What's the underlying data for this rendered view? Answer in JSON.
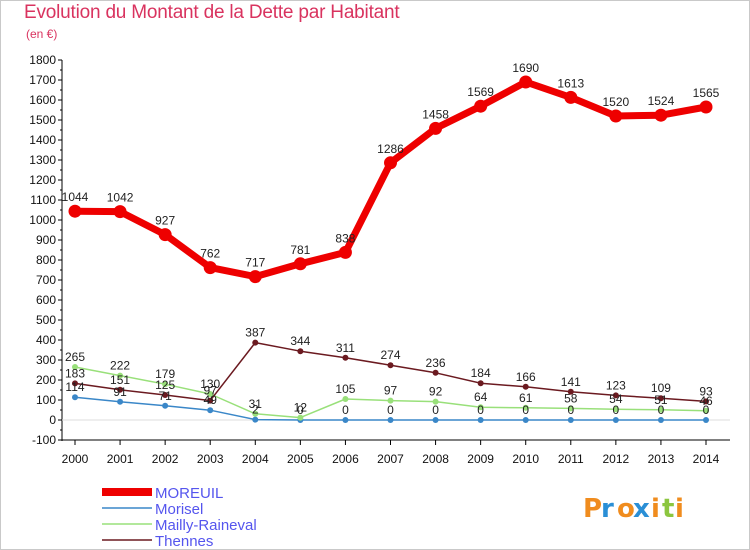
{
  "header": {
    "title": "Evolution du Montant de la Dette par Habitant",
    "subtitle": "(en €)"
  },
  "logo": {
    "text": "Proxiti",
    "letters": [
      "P",
      "r",
      "o",
      "x",
      "i",
      "t",
      "i"
    ],
    "colors": [
      "#f08c1e",
      "#2a8fd6",
      "#f08c1e",
      "#2a8fd6",
      "#f08c1e",
      "#8cc63f",
      "#f08c1e"
    ]
  },
  "chart_data": {
    "type": "line",
    "title": "Evolution du Montant de la Dette par Habitant",
    "subtitle": "(en €)",
    "x": [
      "2000",
      "2001",
      "2002",
      "2003",
      "2004",
      "2005",
      "2006",
      "2007",
      "2008",
      "2009",
      "2010",
      "2011",
      "2012",
      "2013",
      "2014"
    ],
    "ylim": [
      -100,
      1800
    ],
    "yticks": [
      -100,
      0,
      100,
      200,
      300,
      400,
      500,
      600,
      700,
      800,
      900,
      1000,
      1100,
      1200,
      1300,
      1400,
      1500,
      1600,
      1700,
      1800
    ],
    "grid": false,
    "legend": "bottom-left",
    "series": [
      {
        "name": "MOREUIL",
        "color": "#ee0000",
        "values": [
          1044,
          1042,
          927,
          762,
          717,
          781,
          838,
          1286,
          1458,
          1569,
          1690,
          1613,
          1520,
          1524,
          1565
        ],
        "labels": [
          "1044",
          "1042",
          "927",
          "762",
          "717",
          "781",
          "838",
          "1286",
          "1458",
          "1569",
          "1690",
          "1613",
          "1520",
          "1524",
          "1565"
        ]
      },
      {
        "name": "Morisel",
        "color": "#3a87c8",
        "values": [
          114,
          91,
          71,
          49,
          2,
          0,
          0,
          0,
          0,
          0,
          0,
          0,
          0,
          0,
          0
        ],
        "labels": [
          "114",
          "91",
          "71",
          "49",
          "2",
          "0",
          "0",
          "0",
          "0",
          "0",
          "0",
          "0",
          "0",
          "0",
          "0"
        ]
      },
      {
        "name": "Mailly-Raineval",
        "color": "#99e07a",
        "values": [
          265,
          222,
          179,
          130,
          31,
          12,
          105,
          97,
          92,
          64,
          61,
          58,
          54,
          51,
          46
        ],
        "labels": [
          "265",
          "222",
          "179",
          "130",
          "31",
          "12",
          "105",
          "97",
          "92",
          "64",
          "61",
          "58",
          "54",
          "51",
          "46"
        ]
      },
      {
        "name": "Thennes",
        "color": "#6b1a20",
        "values": [
          183,
          151,
          125,
          97,
          387,
          344,
          311,
          274,
          236,
          184,
          166,
          141,
          123,
          109,
          93
        ],
        "labels": [
          "183",
          "151",
          "125",
          "97",
          "387",
          "344",
          "311",
          "274",
          "236",
          "184",
          "166",
          "141",
          "123",
          "109",
          "93"
        ]
      }
    ]
  }
}
